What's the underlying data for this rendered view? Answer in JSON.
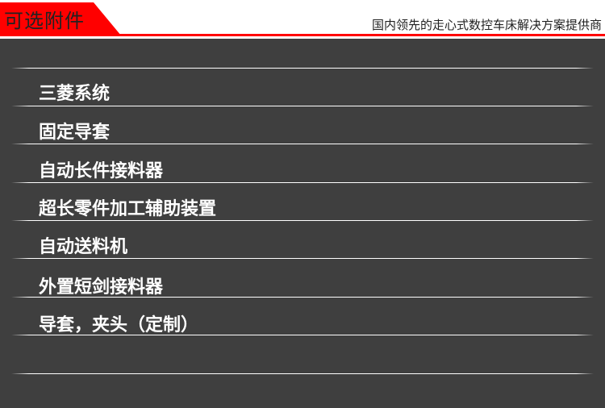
{
  "header": {
    "title": "可选附件",
    "slogan": "国内领先的走心式数控车床解决方案提供商",
    "accent_color": "#ff0000"
  },
  "accessories": [
    "三菱系统",
    "固定导套",
    "自动长件接料器",
    "超长零件加工辅助装置",
    "自动送料机",
    "外置短剑接料器",
    "导套，夹头（定制）"
  ]
}
